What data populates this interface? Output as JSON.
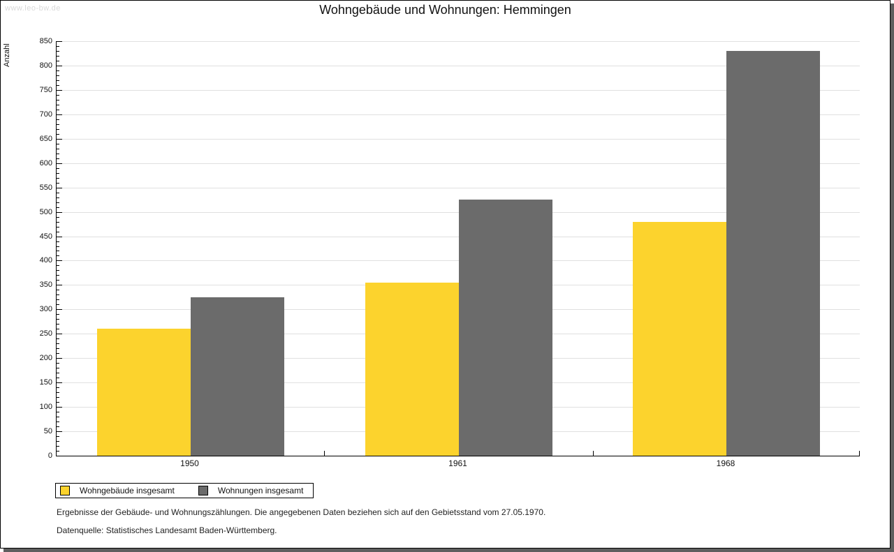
{
  "watermark": "www.leo-bw.de",
  "title": "Wohngebäude und Wohnungen: Hemmingen",
  "chart_data": {
    "type": "bar",
    "categories": [
      "1950",
      "1961",
      "1968"
    ],
    "series": [
      {
        "name": "Wohngebäude insgesamt",
        "color": "#fcd32d",
        "values": [
          260,
          355,
          480
        ]
      },
      {
        "name": "Wohnungen insgesamt",
        "color": "#6b6b6b",
        "values": [
          325,
          525,
          830
        ]
      }
    ],
    "title": "Wohngebäude und Wohnungen: Hemmingen",
    "xlabel": "",
    "ylabel": "Anzahl",
    "ylim": [
      0,
      850
    ],
    "y_major_step": 50,
    "y_minor_step": 10,
    "grid": "horizontal-major",
    "gridline_color": "#e0e0e0",
    "legend_position": "bottom-left"
  },
  "footnotes": {
    "line1": "Ergebnisse der Gebäude- und Wohnungszählungen. Die angegebenen Daten beziehen sich auf den Gebietsstand vom 27.05.1970.",
    "line2": "Datenquelle: Statistisches Landesamt Baden-Württemberg."
  },
  "colors": {
    "series1": "#fcd32d",
    "series2": "#6b6b6b",
    "axis": "#000000",
    "gridline": "#e0e0e0",
    "watermark": "#d9d9d9",
    "page_shadow": "#5e5e5e",
    "background": "#ffffff"
  }
}
